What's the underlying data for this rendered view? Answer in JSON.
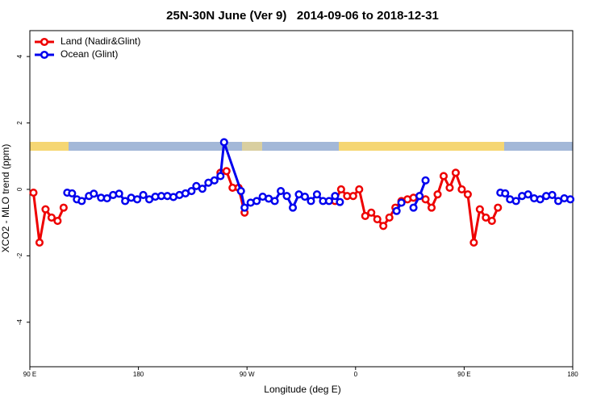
{
  "chart_data": {
    "type": "line",
    "title": "25N-30N June (Ver 9)   2014-09-06 to 2018-12-31",
    "xlabel": "Longitude (deg E)",
    "ylabel": "XCO2 - MLO trend (ppm)",
    "xlim": [
      90,
      540
    ],
    "ylim": [
      -5.34,
      4.78
    ],
    "xticks": [
      {
        "value": 90,
        "label": "90 E"
      },
      180,
      {
        "value": 270,
        "label": "90 W"
      },
      {
        "value": 360,
        "label": "0"
      },
      {
        "value": 450,
        "label": "90 E"
      },
      {
        "value": 540,
        "label": "180"
      }
    ],
    "yticks": [
      -4,
      -2,
      0,
      2,
      4
    ],
    "legend": "top-left",
    "series": [
      {
        "name": "Land (Nadir&Glint)",
        "color": "#ee0000",
        "x": [
          93,
          98,
          103,
          108,
          113,
          118,
          123,
          248,
          253,
          258,
          263,
          268,
          273,
          343,
          348,
          353,
          358,
          363,
          368,
          373,
          378,
          383,
          388,
          393,
          398,
          403,
          408,
          413,
          418,
          423,
          428,
          433,
          438,
          443,
          448,
          453,
          458,
          463,
          468,
          473,
          478
        ],
        "values": [
          -0.1,
          -1.6,
          -0.6,
          -0.85,
          -0.95,
          -0.55,
          null,
          0.5,
          0.55,
          0.05,
          0.05,
          -0.7,
          null,
          -0.35,
          0.0,
          -0.2,
          -0.2,
          0.0,
          -0.8,
          -0.7,
          -0.9,
          -1.1,
          -0.85,
          -0.55,
          -0.35,
          -0.3,
          -0.25,
          -0.2,
          -0.3,
          -0.55,
          -0.15,
          0.4,
          0.05,
          0.5,
          0.0,
          -0.15,
          -1.6,
          -0.6,
          -0.85,
          -0.95,
          -0.55
        ]
      },
      {
        "name": "Ocean (Glint)",
        "color": "#0000ee",
        "x": [
          121,
          125,
          129,
          133,
          139,
          143,
          149,
          154,
          159,
          164,
          169,
          174,
          179,
          184,
          189,
          194,
          199,
          204,
          209,
          214,
          219,
          224,
          228,
          233,
          238,
          243,
          248,
          251,
          265,
          268,
          273,
          278,
          283,
          288,
          293,
          298,
          303,
          308,
          313,
          318,
          323,
          328,
          333,
          338,
          343,
          347,
          360,
          394,
          398,
          401,
          408,
          413,
          418,
          440,
          480,
          484,
          488,
          493,
          498,
          503,
          508,
          513,
          518,
          523,
          528,
          533,
          538
        ],
        "values": [
          -0.1,
          -0.12,
          -0.3,
          -0.35,
          -0.2,
          -0.13,
          -0.25,
          -0.27,
          -0.17,
          -0.13,
          -0.35,
          -0.25,
          -0.3,
          -0.17,
          -0.3,
          -0.22,
          -0.2,
          -0.2,
          -0.23,
          -0.17,
          -0.12,
          -0.05,
          0.1,
          0.02,
          0.2,
          0.27,
          0.4,
          1.42,
          -0.05,
          -0.55,
          -0.4,
          -0.35,
          -0.22,
          -0.28,
          -0.35,
          -0.05,
          -0.2,
          -0.55,
          -0.15,
          -0.22,
          -0.35,
          -0.15,
          -0.35,
          -0.35,
          -0.2,
          -0.38,
          null,
          -0.65,
          -0.4,
          null,
          -0.55,
          -0.2,
          0.27,
          null,
          -0.1,
          -0.12,
          -0.3,
          -0.35,
          -0.2,
          -0.15,
          -0.27,
          -0.3,
          -0.2,
          -0.17,
          -0.35,
          -0.27,
          -0.3
        ]
      }
    ]
  }
}
